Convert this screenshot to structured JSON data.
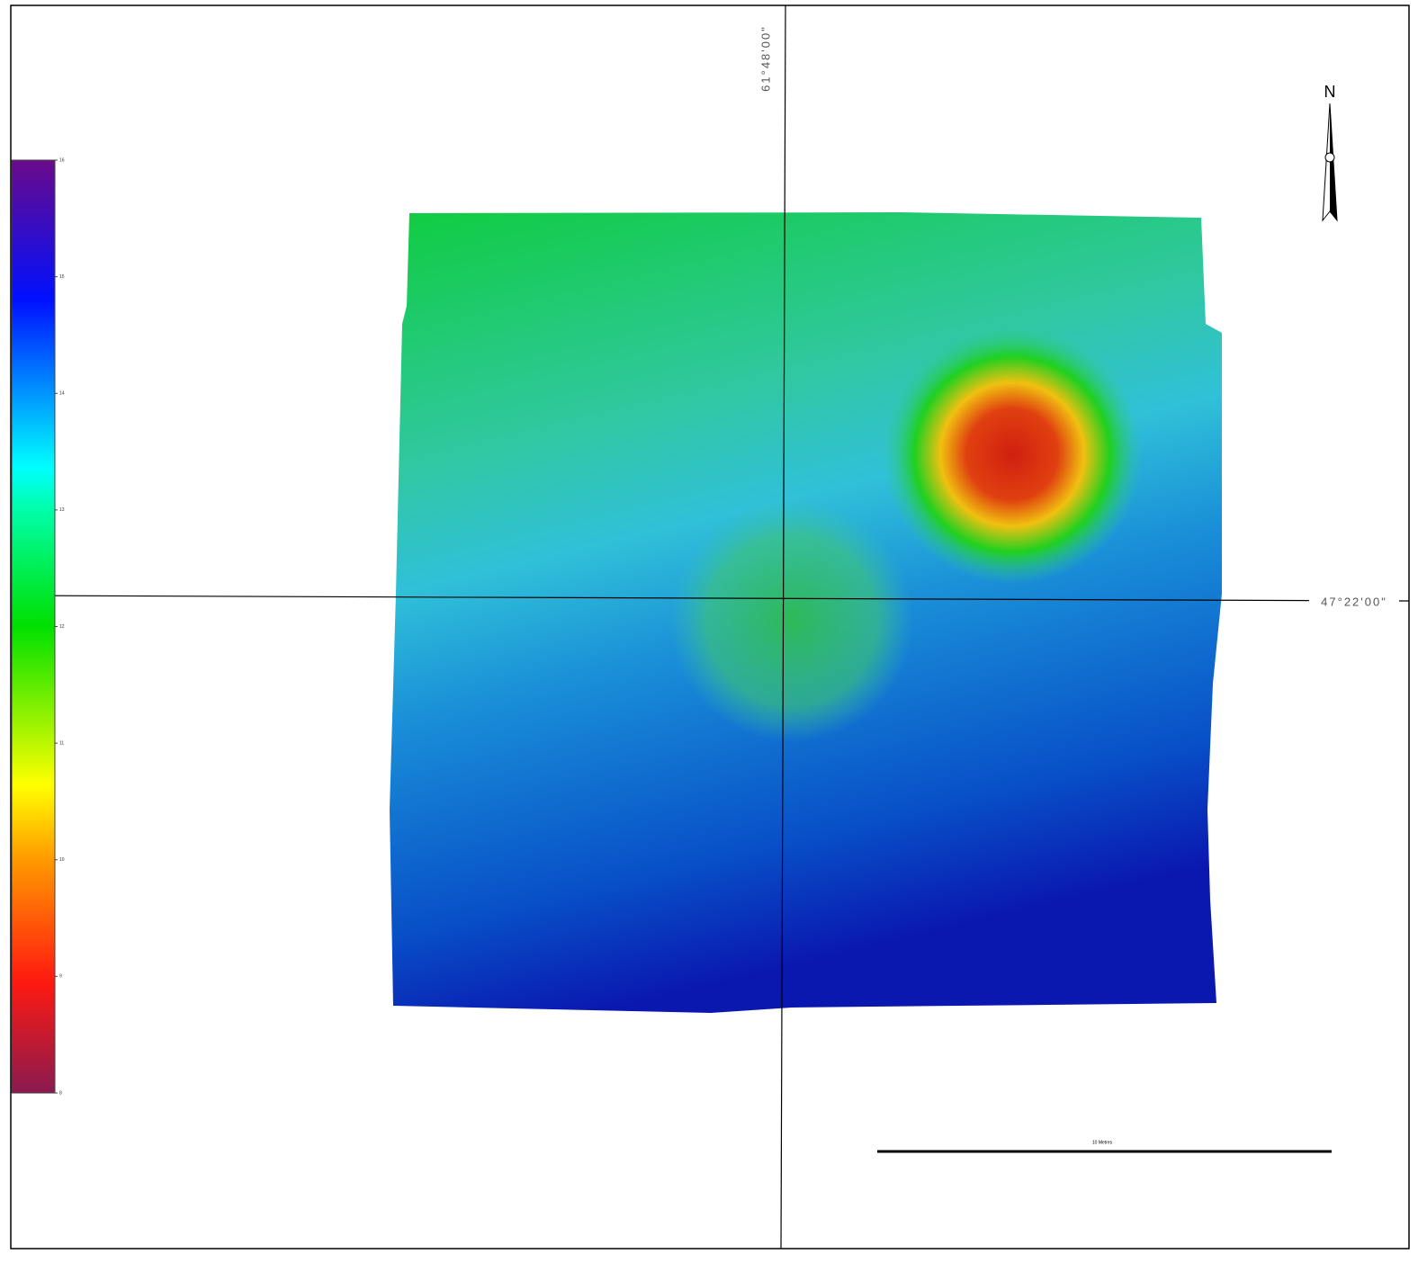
{
  "map": {
    "longitude_label": "61°48'00\"",
    "latitude_label": "47°22'00\"",
    "north_label": "N",
    "scale_bar_label": "10 Metres",
    "colorbar": {
      "lim": [
        8,
        16
      ],
      "ticks": [
        8,
        9,
        10,
        11,
        12,
        13,
        14,
        15,
        16
      ]
    }
  }
}
